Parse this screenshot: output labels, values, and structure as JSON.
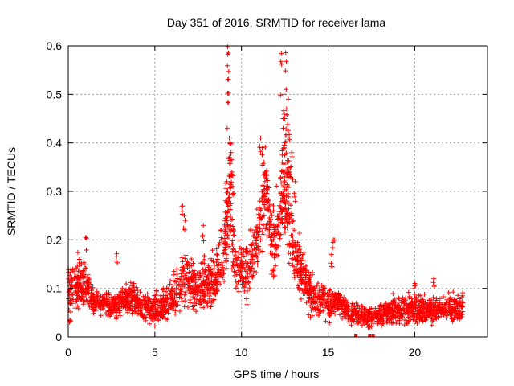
{
  "chart_data": {
    "type": "scatter",
    "title": "Day 351 of 2016, SRMTID for receiver lama",
    "xlabel": "GPS time / hours",
    "ylabel": "SRMTID / TECUs",
    "xlim": [
      0,
      24.2
    ],
    "ylim": [
      0,
      0.6
    ],
    "x_ticks": [
      0,
      5,
      10,
      15,
      20
    ],
    "x_tick_labels": [
      "0",
      "5",
      "10",
      "15",
      "20"
    ],
    "y_ticks": [
      0,
      0.1,
      0.2,
      0.3,
      0.4,
      0.5,
      0.6
    ],
    "y_tick_labels": [
      "0",
      "0.1",
      "0.2",
      "0.3",
      "0.4",
      "0.5",
      "0.6"
    ],
    "grid": true,
    "marker": "plus",
    "color": "#ff0000",
    "x_range_data": [
      0,
      22.8
    ],
    "envelope": [
      {
        "x": 0.0,
        "y": 0.1,
        "spread": 0.05
      },
      {
        "x": 0.5,
        "y": 0.11,
        "spread": 0.05
      },
      {
        "x": 1.0,
        "y": 0.11,
        "spread": 0.05
      },
      {
        "x": 1.5,
        "y": 0.07,
        "spread": 0.02
      },
      {
        "x": 2.5,
        "y": 0.065,
        "spread": 0.02
      },
      {
        "x": 3.5,
        "y": 0.08,
        "spread": 0.03
      },
      {
        "x": 4.5,
        "y": 0.06,
        "spread": 0.03
      },
      {
        "x": 5.3,
        "y": 0.06,
        "spread": 0.03
      },
      {
        "x": 6.0,
        "y": 0.08,
        "spread": 0.04
      },
      {
        "x": 6.7,
        "y": 0.12,
        "spread": 0.05
      },
      {
        "x": 7.5,
        "y": 0.1,
        "spread": 0.04
      },
      {
        "x": 8.5,
        "y": 0.12,
        "spread": 0.05
      },
      {
        "x": 9.0,
        "y": 0.17,
        "spread": 0.06
      },
      {
        "x": 9.3,
        "y": 0.28,
        "spread": 0.09
      },
      {
        "x": 9.6,
        "y": 0.16,
        "spread": 0.05
      },
      {
        "x": 10.3,
        "y": 0.13,
        "spread": 0.05
      },
      {
        "x": 11.0,
        "y": 0.2,
        "spread": 0.06
      },
      {
        "x": 11.4,
        "y": 0.29,
        "spread": 0.08
      },
      {
        "x": 11.8,
        "y": 0.18,
        "spread": 0.06
      },
      {
        "x": 12.6,
        "y": 0.3,
        "spread": 0.1
      },
      {
        "x": 13.0,
        "y": 0.18,
        "spread": 0.06
      },
      {
        "x": 13.8,
        "y": 0.1,
        "spread": 0.04
      },
      {
        "x": 14.5,
        "y": 0.07,
        "spread": 0.03
      },
      {
        "x": 15.5,
        "y": 0.07,
        "spread": 0.03
      },
      {
        "x": 16.5,
        "y": 0.045,
        "spread": 0.02
      },
      {
        "x": 17.5,
        "y": 0.04,
        "spread": 0.02
      },
      {
        "x": 18.5,
        "y": 0.055,
        "spread": 0.025
      },
      {
        "x": 19.5,
        "y": 0.06,
        "spread": 0.025
      },
      {
        "x": 20.5,
        "y": 0.055,
        "spread": 0.025
      },
      {
        "x": 21.5,
        "y": 0.06,
        "spread": 0.025
      },
      {
        "x": 22.8,
        "y": 0.06,
        "spread": 0.025
      }
    ],
    "spikes": [
      {
        "x": 9.2,
        "y": 0.598
      },
      {
        "x": 9.25,
        "y": 0.585
      },
      {
        "x": 9.2,
        "y": 0.502
      },
      {
        "x": 9.3,
        "y": 0.41
      },
      {
        "x": 9.35,
        "y": 0.4
      },
      {
        "x": 9.4,
        "y": 0.38
      },
      {
        "x": 9.3,
        "y": 0.37
      },
      {
        "x": 9.15,
        "y": 0.32
      },
      {
        "x": 9.45,
        "y": 0.34
      },
      {
        "x": 9.5,
        "y": 0.31
      },
      {
        "x": 9.2,
        "y": 0.3
      },
      {
        "x": 9.35,
        "y": 0.33
      },
      {
        "x": 11.1,
        "y": 0.41
      },
      {
        "x": 11.2,
        "y": 0.39
      },
      {
        "x": 11.3,
        "y": 0.36
      },
      {
        "x": 11.4,
        "y": 0.34
      },
      {
        "x": 11.35,
        "y": 0.32
      },
      {
        "x": 11.5,
        "y": 0.31
      },
      {
        "x": 11.2,
        "y": 0.3
      },
      {
        "x": 11.6,
        "y": 0.27
      },
      {
        "x": 11.05,
        "y": 0.28
      },
      {
        "x": 12.3,
        "y": 0.584
      },
      {
        "x": 12.55,
        "y": 0.586
      },
      {
        "x": 12.45,
        "y": 0.5
      },
      {
        "x": 12.6,
        "y": 0.47
      },
      {
        "x": 12.5,
        "y": 0.45
      },
      {
        "x": 12.4,
        "y": 0.43
      },
      {
        "x": 12.7,
        "y": 0.49
      },
      {
        "x": 12.75,
        "y": 0.41
      },
      {
        "x": 12.5,
        "y": 0.4
      },
      {
        "x": 12.35,
        "y": 0.36
      },
      {
        "x": 12.65,
        "y": 0.36
      },
      {
        "x": 12.8,
        "y": 0.34
      },
      {
        "x": 12.45,
        "y": 0.33
      },
      {
        "x": 12.55,
        "y": 0.25
      },
      {
        "x": 12.6,
        "y": 0.26
      },
      {
        "x": 13.1,
        "y": 0.32
      },
      {
        "x": 12.9,
        "y": 0.38
      },
      {
        "x": 6.6,
        "y": 0.27
      },
      {
        "x": 6.7,
        "y": 0.25
      },
      {
        "x": 7.8,
        "y": 0.23
      },
      {
        "x": 8.8,
        "y": 0.22
      },
      {
        "x": 1.0,
        "y": 0.205
      },
      {
        "x": 2.8,
        "y": 0.172
      },
      {
        "x": 15.3,
        "y": 0.2
      },
      {
        "x": 15.2,
        "y": 0.17
      },
      {
        "x": 20.0,
        "y": 0.11
      },
      {
        "x": 21.1,
        "y": 0.12
      },
      {
        "x": 0.1,
        "y": 0.035
      }
    ],
    "min_markers_x": [
      16.6,
      17.4,
      17.6
    ]
  }
}
